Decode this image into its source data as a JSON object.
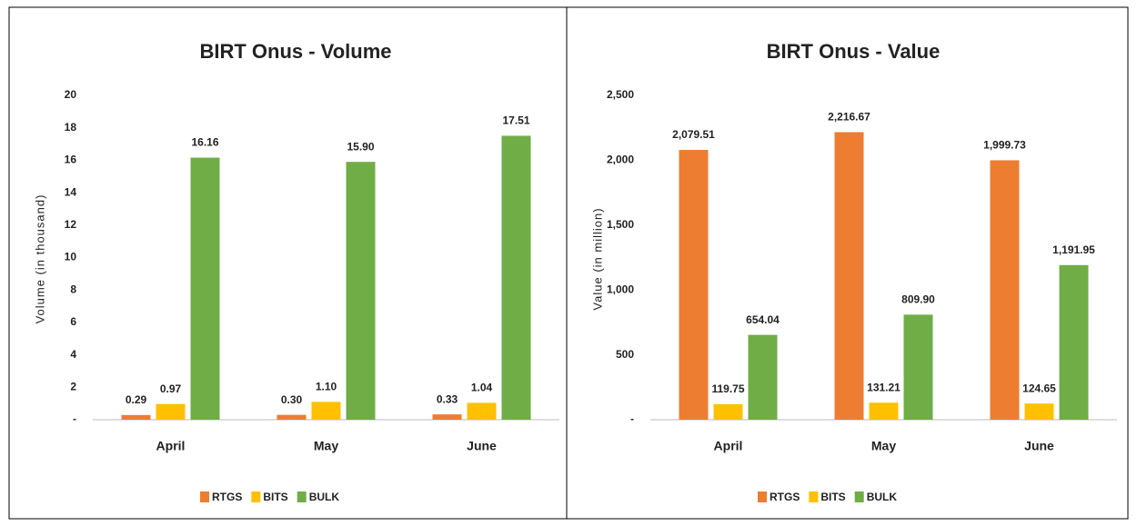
{
  "chart_data": [
    {
      "type": "bar",
      "title": "BIRT Onus - Volume",
      "y_label": "Volume  (in thousand)",
      "categories": [
        "April",
        "May",
        "June"
      ],
      "series": [
        {
          "name": "RTGS",
          "color": "#ed7d31",
          "values": [
            0.29,
            0.3,
            0.33
          ],
          "value_labels": [
            "0.29",
            "0.30",
            "0.33"
          ]
        },
        {
          "name": "BITS",
          "color": "#ffc000",
          "values": [
            0.97,
            1.1,
            1.04
          ],
          "value_labels": [
            "0.97",
            "1.10",
            "1.04"
          ]
        },
        {
          "name": "BULK",
          "color": "#70ad47",
          "values": [
            16.16,
            15.9,
            17.51
          ],
          "value_labels": [
            "16.16",
            "15.90",
            "17.51"
          ]
        }
      ],
      "ylim": [
        0,
        20
      ],
      "yticks": [
        {
          "value": 0,
          "label": "-"
        },
        2,
        4,
        6,
        8,
        10,
        12,
        14,
        16,
        18,
        20
      ],
      "grid": false,
      "legend": "bottom"
    },
    {
      "type": "bar",
      "title": "BIRT Onus - Value",
      "y_label": "Value  (in million)",
      "categories": [
        "April",
        "May",
        "June"
      ],
      "series": [
        {
          "name": "RTGS",
          "color": "#ed7d31",
          "values": [
            2079.51,
            2216.67,
            1999.73
          ],
          "value_labels": [
            "2,079.51",
            "2,216.67",
            "1,999.73"
          ]
        },
        {
          "name": "BITS",
          "color": "#ffc000",
          "values": [
            119.75,
            131.21,
            124.65
          ],
          "value_labels": [
            "119.75",
            "131.21",
            "124.65"
          ]
        },
        {
          "name": "BULK",
          "color": "#70ad47",
          "values": [
            654.04,
            809.9,
            1191.95
          ],
          "value_labels": [
            "654.04",
            "809.90",
            "1,191.95"
          ]
        }
      ],
      "ylim": [
        0,
        2500
      ],
      "yticks": [
        {
          "value": 0,
          "label": "-"
        },
        500,
        {
          "value": 1000,
          "label": "1,000"
        },
        {
          "value": 1500,
          "label": "1,500"
        },
        {
          "value": 2000,
          "label": "2,000"
        },
        {
          "value": 2500,
          "label": "2,500"
        }
      ],
      "grid": false,
      "legend": "bottom"
    }
  ]
}
